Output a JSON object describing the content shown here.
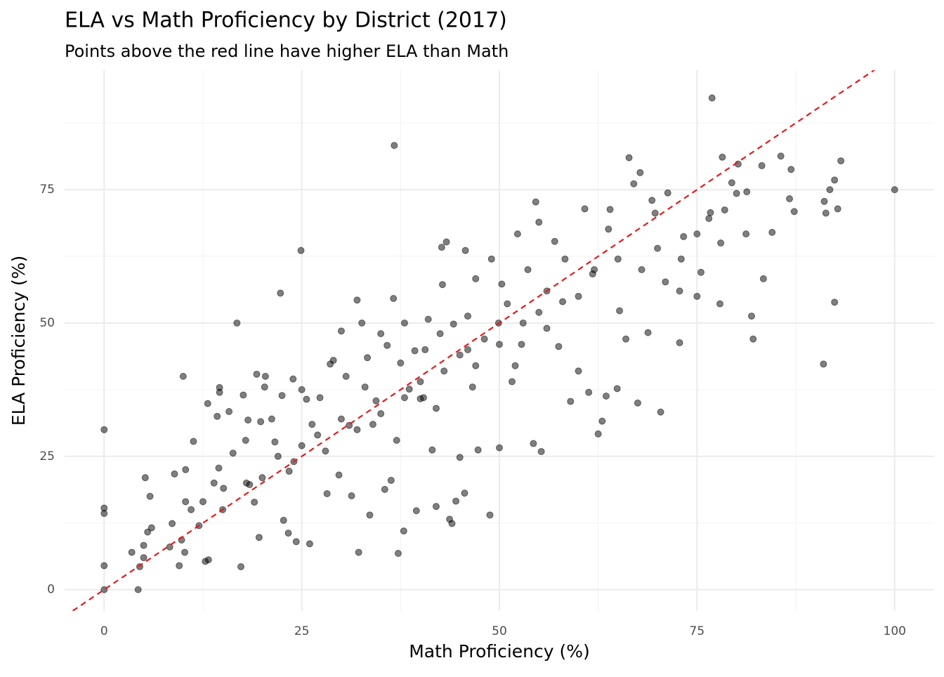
{
  "chart_data": {
    "type": "scatter",
    "title": "ELA vs Math Proficiency by District (2017)",
    "subtitle": "Points above the red line have higher ELA than Math",
    "x_label": "Math Proficiency (%)",
    "y_label": "ELA Proficiency (%)",
    "color": "#000000",
    "opacity": 0.5,
    "reference_line": {
      "slope": 1,
      "intercept": 0,
      "color": "#e41a1c",
      "dashed": true
    },
    "grid": true,
    "xlim": [
      -5,
      105
    ],
    "ylim": [
      -4,
      97.4
    ],
    "xticks": [
      0,
      25,
      50,
      75,
      100
    ],
    "yticks": [
      0,
      25,
      50,
      75
    ],
    "x_minor_grid": [
      12.5,
      37.5,
      62.5,
      87.5
    ],
    "y_minor_grid": [
      12.5,
      37.5,
      62.5,
      87.5
    ],
    "x": [
      0,
      0,
      0,
      0,
      0,
      4.3,
      4.5,
      5,
      5,
      3.5,
      5.2,
      5.8,
      6,
      5.5,
      8.3,
      8.9,
      9.5,
      8.6,
      10,
      10.3,
      9.8,
      10.2,
      10.3,
      11,
      11.3,
      12.5,
      12.8,
      13.2,
      13.1,
      13.9,
      14.3,
      14.6,
      14.6,
      14.5,
      15.1,
      15.8,
      16.3,
      16.8,
      17.3,
      17.9,
      17.6,
      18.2,
      18.4,
      19,
      19.3,
      19.6,
      19.8,
      20.3,
      20.4,
      21.2,
      21.6,
      22.3,
      22.7,
      22.5,
      23.4,
      23.3,
      23.9,
      24.3,
      24.9,
      25,
      25.6,
      26,
      26.3,
      27.3,
      28.2,
      28.6,
      29,
      29.7,
      30,
      30.6,
      31,
      31.3,
      32,
      32.2,
      32.6,
      33.3,
      33.6,
      34,
      34.4,
      35,
      35.5,
      35.8,
      36.3,
      36.6,
      36.7,
      37.2,
      37.5,
      37.9,
      38,
      38.6,
      39.3,
      39.5,
      40,
      40.4,
      40.6,
      41,
      41.5,
      42,
      42.5,
      42.7,
      42.8,
      43.3,
      43.7,
      44,
      44.2,
      44.5,
      45,
      45.6,
      45.7,
      46,
      46.6,
      47,
      47.3,
      48.1,
      48.8,
      49,
      49.9,
      50,
      50.3,
      51,
      51.6,
      52.3,
      52.8,
      53.6,
      54.3,
      54.6,
      55,
      55.3,
      56,
      57,
      57.5,
      58.3,
      59,
      60,
      60.8,
      61.3,
      61.8,
      62.5,
      63,
      63.5,
      63.8,
      64,
      64.9,
      65.2,
      66,
      66.4,
      67,
      67.5,
      67.8,
      68.8,
      69.3,
      69.7,
      70.4,
      71,
      71.3,
      72.8,
      72.8,
      73.3,
      75,
      75.5,
      76.5,
      76.7,
      76.9,
      77.9,
      78.2,
      78.5,
      79.4,
      80,
      80.2,
      81.3,
      81.2,
      81.9,
      82.1,
      83.2,
      83.4,
      84.5,
      85.6,
      86.7,
      86.9,
      87.3,
      91,
      91.1,
      91.3,
      91.8,
      92.4,
      92.4,
      92.8,
      93.2,
      100,
      20,
      22,
      25,
      27,
      30,
      32,
      35,
      38,
      40,
      43,
      45,
      47,
      50,
      53,
      55,
      58,
      60,
      15,
      12,
      18,
      24,
      28,
      33,
      37,
      42,
      46,
      52,
      56,
      62,
      65,
      68,
      70,
      73,
      75,
      78
    ],
    "values": [
      0,
      4.5,
      14.3,
      15.3,
      30,
      0,
      4.3,
      6,
      8.3,
      7,
      21,
      17.5,
      11.6,
      10.8,
      8,
      21.7,
      4.5,
      12.4,
      40,
      22.5,
      9.3,
      7,
      16.5,
      15,
      27.8,
      16.5,
      5.3,
      5.6,
      34.9,
      20,
      32.5,
      37.9,
      37,
      22.8,
      19,
      33.4,
      25.6,
      50,
      4.3,
      28,
      36.5,
      31.8,
      19.7,
      16.4,
      40.4,
      9.8,
      31.5,
      38,
      40,
      32,
      27.7,
      55.6,
      13,
      36.4,
      22.2,
      10.6,
      39.5,
      9,
      63.6,
      37.5,
      35.7,
      8.6,
      31,
      36,
      18,
      42.3,
      43,
      21.5,
      48.5,
      40,
      30.8,
      17.6,
      54.3,
      7,
      50,
      43.5,
      14,
      31,
      35.4,
      48,
      18.8,
      45.8,
      20.5,
      54.6,
      83.3,
      6.8,
      42.5,
      11,
      50,
      37.6,
      44.8,
      14.8,
      35.8,
      36,
      45,
      50.7,
      26.2,
      15.6,
      48,
      64.2,
      57.2,
      65.2,
      13.2,
      12.4,
      49.8,
      16.6,
      24.8,
      18.1,
      63.6,
      51.3,
      38,
      58.3,
      26.2,
      47,
      14,
      62,
      50,
      26.6,
      57.3,
      53.6,
      39,
      66.7,
      46,
      60,
      27.4,
      72.7,
      68.9,
      25.9,
      49,
      65.3,
      45.6,
      62,
      35.3,
      41,
      71.4,
      37,
      59.2,
      29.2,
      31.6,
      36.3,
      67.6,
      71.3,
      37.7,
      52.3,
      47,
      81,
      76.1,
      35,
      78.2,
      48.2,
      73,
      70.6,
      33.3,
      57.7,
      74.4,
      46.3,
      56,
      66.2,
      66.7,
      59.5,
      69.6,
      70.7,
      92.2,
      53.6,
      81.1,
      71.2,
      76.3,
      74.3,
      79.8,
      74.6,
      66.7,
      51.3,
      47,
      79.5,
      58.3,
      67,
      81.3,
      73.3,
      78.8,
      70.9,
      42.3,
      72.8,
      70.6,
      75,
      53.9,
      76.8,
      71.4,
      80.4,
      75,
      21,
      25,
      27,
      29,
      32,
      30,
      33,
      36,
      39,
      41,
      44,
      42,
      46,
      50,
      52,
      54,
      55,
      15,
      12,
      20,
      24,
      26,
      38,
      28,
      34,
      45,
      42,
      56,
      60,
      62,
      60,
      64,
      62,
      55,
      65
    ]
  }
}
